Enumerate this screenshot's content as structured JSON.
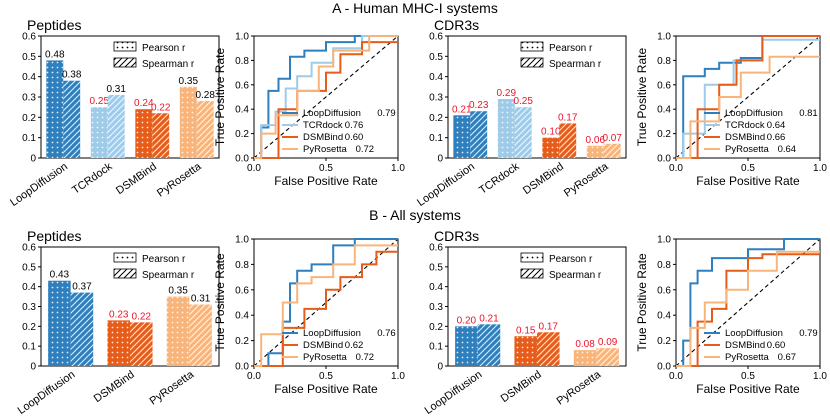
{
  "panels": [
    {
      "title": "A - Human MHC-I systems"
    },
    {
      "title": "B - All systems"
    }
  ],
  "colors": {
    "LoopDiffusion": "#2e7fbd",
    "TCRdock": "#9ecbe8",
    "DSMBind": "#e65c18",
    "PyRosetta": "#f9b47a",
    "label_red": "#e8162a",
    "label_black": "#000000"
  },
  "legend_labels": {
    "pearson": "Pearson r",
    "spearman": "Spearman r"
  },
  "chart_data": [
    {
      "id": "A-pep-bar",
      "type": "bar",
      "title": "Peptides",
      "xlabel": "",
      "ylabel": "",
      "ylim": [
        0,
        0.6
      ],
      "yticks": [
        "0",
        "0.1",
        "0.2",
        "0.3",
        "0.4",
        "0.5",
        "0.6"
      ],
      "categories": [
        "LoopDiffusion",
        "TCRdock",
        "DSMBind",
        "PyRosetta"
      ],
      "series": [
        {
          "name": "Pearson r",
          "values": [
            0.48,
            0.25,
            0.24,
            0.35
          ],
          "labels": [
            "0.48",
            "0.25",
            "0.24",
            "0.35"
          ],
          "label_colors": [
            "black",
            "red",
            "red",
            "black"
          ]
        },
        {
          "name": "Spearman r",
          "values": [
            0.38,
            0.31,
            0.22,
            0.28
          ],
          "labels": [
            "0.38",
            "0.31",
            "0.22",
            "0.28"
          ],
          "label_colors": [
            "black",
            "black",
            "red",
            "black"
          ]
        }
      ]
    },
    {
      "id": "A-pep-roc",
      "type": "line",
      "xlabel": "False Positive Rate",
      "ylabel": "True Positive Rate",
      "xlim": [
        0,
        1
      ],
      "ylim": [
        0,
        1
      ],
      "xticks": [
        "0.0",
        "0.5",
        "1.0"
      ],
      "yticks": [
        "0.0",
        "0.2",
        "0.4",
        "0.6",
        "0.8",
        "1.0"
      ],
      "diagonal": true,
      "series": [
        {
          "name": "LoopDiffusion",
          "auc": "0.79",
          "x": [
            0,
            0.05,
            0.05,
            0.1,
            0.1,
            0.17,
            0.17,
            0.25,
            0.25,
            0.35,
            0.35,
            0.5,
            0.5,
            0.7,
            0.7,
            1
          ],
          "y": [
            0,
            0,
            0.25,
            0.25,
            0.55,
            0.55,
            0.65,
            0.65,
            0.83,
            0.83,
            0.88,
            0.88,
            0.95,
            0.95,
            1,
            1
          ]
        },
        {
          "name": "TCRdock",
          "auc": "0.76",
          "x": [
            0,
            0.05,
            0.05,
            0.15,
            0.15,
            0.22,
            0.22,
            0.3,
            0.3,
            0.4,
            0.4,
            0.55,
            0.55,
            0.75,
            0.75,
            1
          ],
          "y": [
            0,
            0,
            0.27,
            0.27,
            0.38,
            0.38,
            0.57,
            0.57,
            0.67,
            0.67,
            0.78,
            0.78,
            0.9,
            0.9,
            1,
            1
          ]
        },
        {
          "name": "DSMBind",
          "auc": "0.60",
          "x": [
            0,
            0.17,
            0.17,
            0.3,
            0.3,
            0.5,
            0.5,
            0.6,
            0.6,
            0.75,
            0.75,
            1
          ],
          "y": [
            0,
            0,
            0.4,
            0.4,
            0.55,
            0.55,
            0.7,
            0.7,
            0.85,
            0.85,
            0.95,
            0.95
          ]
        },
        {
          "name": "PyRosetta",
          "auc": "0.72",
          "x": [
            0,
            0.05,
            0.05,
            0.15,
            0.15,
            0.3,
            0.3,
            0.45,
            0.45,
            0.55,
            0.55,
            0.8,
            0.8,
            1
          ],
          "y": [
            0,
            0,
            0.2,
            0.2,
            0.35,
            0.35,
            0.55,
            0.55,
            0.75,
            0.75,
            0.88,
            0.88,
            1,
            1
          ]
        }
      ]
    },
    {
      "id": "A-cdr-bar",
      "type": "bar",
      "title": "CDR3s",
      "xlabel": "",
      "ylabel": "",
      "ylim": [
        0,
        0.6
      ],
      "yticks": [
        "0",
        "0.1",
        "0.2",
        "0.3",
        "0.4",
        "0.5",
        "0.6"
      ],
      "categories": [
        "LoopDiffusion",
        "TCRdock",
        "DSMBind",
        "PyRosetta"
      ],
      "series": [
        {
          "name": "Pearson r",
          "values": [
            0.21,
            0.29,
            0.1,
            0.06
          ],
          "labels": [
            "0.21",
            "0.29",
            "0.10",
            "0.06"
          ],
          "label_colors": [
            "red",
            "red",
            "red",
            "red"
          ]
        },
        {
          "name": "Spearman r",
          "values": [
            0.23,
            0.25,
            0.17,
            0.07
          ],
          "labels": [
            "0.23",
            "0.25",
            "0.17",
            "0.07"
          ],
          "label_colors": [
            "red",
            "red",
            "red",
            "red"
          ]
        }
      ]
    },
    {
      "id": "A-cdr-roc",
      "type": "line",
      "xlabel": "False Positive Rate",
      "ylabel": "True Positive Rate",
      "xlim": [
        0,
        1
      ],
      "ylim": [
        0,
        1
      ],
      "xticks": [
        "0.0",
        "0.5",
        "1.0"
      ],
      "yticks": [
        "0.0",
        "0.2",
        "0.4",
        "0.6",
        "0.8",
        "1.0"
      ],
      "diagonal": true,
      "series": [
        {
          "name": "LoopDiffusion",
          "auc": "0.81",
          "x": [
            0,
            0.05,
            0.05,
            0.2,
            0.2,
            0.3,
            0.3,
            0.45,
            0.45,
            0.6,
            0.6,
            1
          ],
          "y": [
            0,
            0,
            0.67,
            0.67,
            0.73,
            0.73,
            0.78,
            0.78,
            0.82,
            0.82,
            1,
            1
          ]
        },
        {
          "name": "TCRdock",
          "auc": "0.64",
          "x": [
            0,
            0.05,
            0.05,
            0.2,
            0.2,
            0.4,
            0.4,
            0.6,
            0.6,
            1
          ],
          "y": [
            0,
            0,
            0.2,
            0.2,
            0.6,
            0.6,
            0.8,
            0.8,
            0.97,
            0.97
          ]
        },
        {
          "name": "DSMBind",
          "auc": "0.66",
          "x": [
            0,
            0.15,
            0.15,
            0.3,
            0.3,
            0.42,
            0.42,
            0.6,
            0.6,
            1
          ],
          "y": [
            0,
            0,
            0.4,
            0.4,
            0.6,
            0.6,
            0.8,
            0.8,
            1,
            1
          ]
        },
        {
          "name": "PyRosetta",
          "auc": "0.64",
          "x": [
            0,
            0.1,
            0.1,
            0.3,
            0.3,
            0.45,
            0.45,
            0.65,
            0.65,
            1
          ],
          "y": [
            0,
            0,
            0.3,
            0.3,
            0.5,
            0.5,
            0.7,
            0.7,
            0.83,
            0.83
          ]
        }
      ]
    },
    {
      "id": "B-pep-bar",
      "type": "bar",
      "title": "Peptides",
      "xlabel": "",
      "ylabel": "",
      "ylim": [
        0,
        0.6
      ],
      "yticks": [
        "0",
        "0.1",
        "0.2",
        "0.3",
        "0.4",
        "0.5",
        "0.6"
      ],
      "categories": [
        "LoopDiffusion",
        "DSMBind",
        "PyRosetta"
      ],
      "series": [
        {
          "name": "Pearson r",
          "values": [
            0.43,
            0.23,
            0.35
          ],
          "labels": [
            "0.43",
            "0.23",
            "0.35"
          ],
          "label_colors": [
            "black",
            "red",
            "black"
          ]
        },
        {
          "name": "Spearman r",
          "values": [
            0.37,
            0.22,
            0.31
          ],
          "labels": [
            "0.37",
            "0.22",
            "0.31"
          ],
          "label_colors": [
            "black",
            "red",
            "black"
          ]
        }
      ]
    },
    {
      "id": "B-pep-roc",
      "type": "line",
      "xlabel": "False Positive Rate",
      "ylabel": "True Positive Rate",
      "xlim": [
        0,
        1
      ],
      "ylim": [
        0,
        1
      ],
      "xticks": [
        "0.0",
        "0.5",
        "1.0"
      ],
      "yticks": [
        "0.0",
        "0.2",
        "0.4",
        "0.6",
        "0.8",
        "1.0"
      ],
      "diagonal": true,
      "series": [
        {
          "name": "LoopDiffusion",
          "auc": "0.76",
          "x": [
            0,
            0.1,
            0.1,
            0.2,
            0.2,
            0.25,
            0.25,
            0.3,
            0.3,
            0.4,
            0.4,
            0.55,
            0.55,
            0.7,
            0.7,
            1
          ],
          "y": [
            0,
            0,
            0.1,
            0.1,
            0.35,
            0.35,
            0.65,
            0.65,
            0.75,
            0.75,
            0.8,
            0.8,
            0.95,
            0.95,
            1,
            1
          ]
        },
        {
          "name": "DSMBind",
          "auc": "0.62",
          "x": [
            0,
            0.2,
            0.2,
            0.35,
            0.35,
            0.5,
            0.5,
            0.6,
            0.6,
            0.75,
            0.75,
            0.85,
            0.85,
            1
          ],
          "y": [
            0,
            0,
            0.3,
            0.3,
            0.45,
            0.45,
            0.6,
            0.6,
            0.7,
            0.7,
            0.8,
            0.8,
            0.9,
            0.9
          ]
        },
        {
          "name": "PyRosetta",
          "auc": "0.72",
          "x": [
            0,
            0.05,
            0.05,
            0.2,
            0.2,
            0.3,
            0.3,
            0.4,
            0.4,
            0.55,
            0.55,
            0.7,
            0.7,
            1
          ],
          "y": [
            0,
            0,
            0.25,
            0.25,
            0.5,
            0.5,
            0.65,
            0.65,
            0.7,
            0.7,
            0.8,
            0.8,
            0.95,
            0.95
          ]
        }
      ]
    },
    {
      "id": "B-cdr-bar",
      "type": "bar",
      "title": "CDR3s",
      "xlabel": "",
      "ylabel": "",
      "ylim": [
        0,
        0.6
      ],
      "yticks": [
        "0",
        "0.1",
        "0.2",
        "0.3",
        "0.4",
        "0.5",
        "0.6"
      ],
      "categories": [
        "LoopDiffusion",
        "DSMBind",
        "PyRosetta"
      ],
      "series": [
        {
          "name": "Pearson r",
          "values": [
            0.2,
            0.15,
            0.08
          ],
          "labels": [
            "0.20",
            "0.15",
            "0.08"
          ],
          "label_colors": [
            "red",
            "red",
            "red"
          ]
        },
        {
          "name": "Spearman r",
          "values": [
            0.21,
            0.17,
            0.09
          ],
          "labels": [
            "0.21",
            "0.17",
            "0.09"
          ],
          "label_colors": [
            "red",
            "red",
            "red"
          ]
        }
      ]
    },
    {
      "id": "B-cdr-roc",
      "type": "line",
      "xlabel": "False Positive Rate",
      "ylabel": "True Positive Rate",
      "xlim": [
        0,
        1
      ],
      "ylim": [
        0,
        1
      ],
      "xticks": [
        "0.0",
        "0.5",
        "1.0"
      ],
      "yticks": [
        "0.0",
        "0.2",
        "0.4",
        "0.6",
        "0.8",
        "1.0"
      ],
      "diagonal": true,
      "series": [
        {
          "name": "LoopDiffusion",
          "auc": "0.79",
          "x": [
            0,
            0.05,
            0.05,
            0.1,
            0.1,
            0.15,
            0.15,
            0.25,
            0.25,
            0.5,
            0.5,
            0.75,
            0.75,
            1
          ],
          "y": [
            0,
            0,
            0.2,
            0.2,
            0.65,
            0.65,
            0.75,
            0.75,
            0.85,
            0.85,
            0.92,
            0.92,
            1,
            1
          ]
        },
        {
          "name": "DSMBind",
          "auc": "0.60",
          "x": [
            0,
            0.15,
            0.15,
            0.25,
            0.25,
            0.35,
            0.35,
            0.5,
            0.5,
            0.6,
            0.6,
            1
          ],
          "y": [
            0,
            0,
            0.35,
            0.35,
            0.45,
            0.45,
            0.75,
            0.75,
            0.85,
            0.85,
            0.88,
            0.88
          ]
        },
        {
          "name": "PyRosetta",
          "auc": "0.67",
          "x": [
            0,
            0.1,
            0.1,
            0.2,
            0.2,
            0.35,
            0.35,
            0.5,
            0.5,
            0.7,
            0.7,
            1
          ],
          "y": [
            0,
            0,
            0.3,
            0.3,
            0.5,
            0.5,
            0.6,
            0.6,
            0.75,
            0.75,
            0.9,
            0.9
          ]
        }
      ]
    }
  ]
}
